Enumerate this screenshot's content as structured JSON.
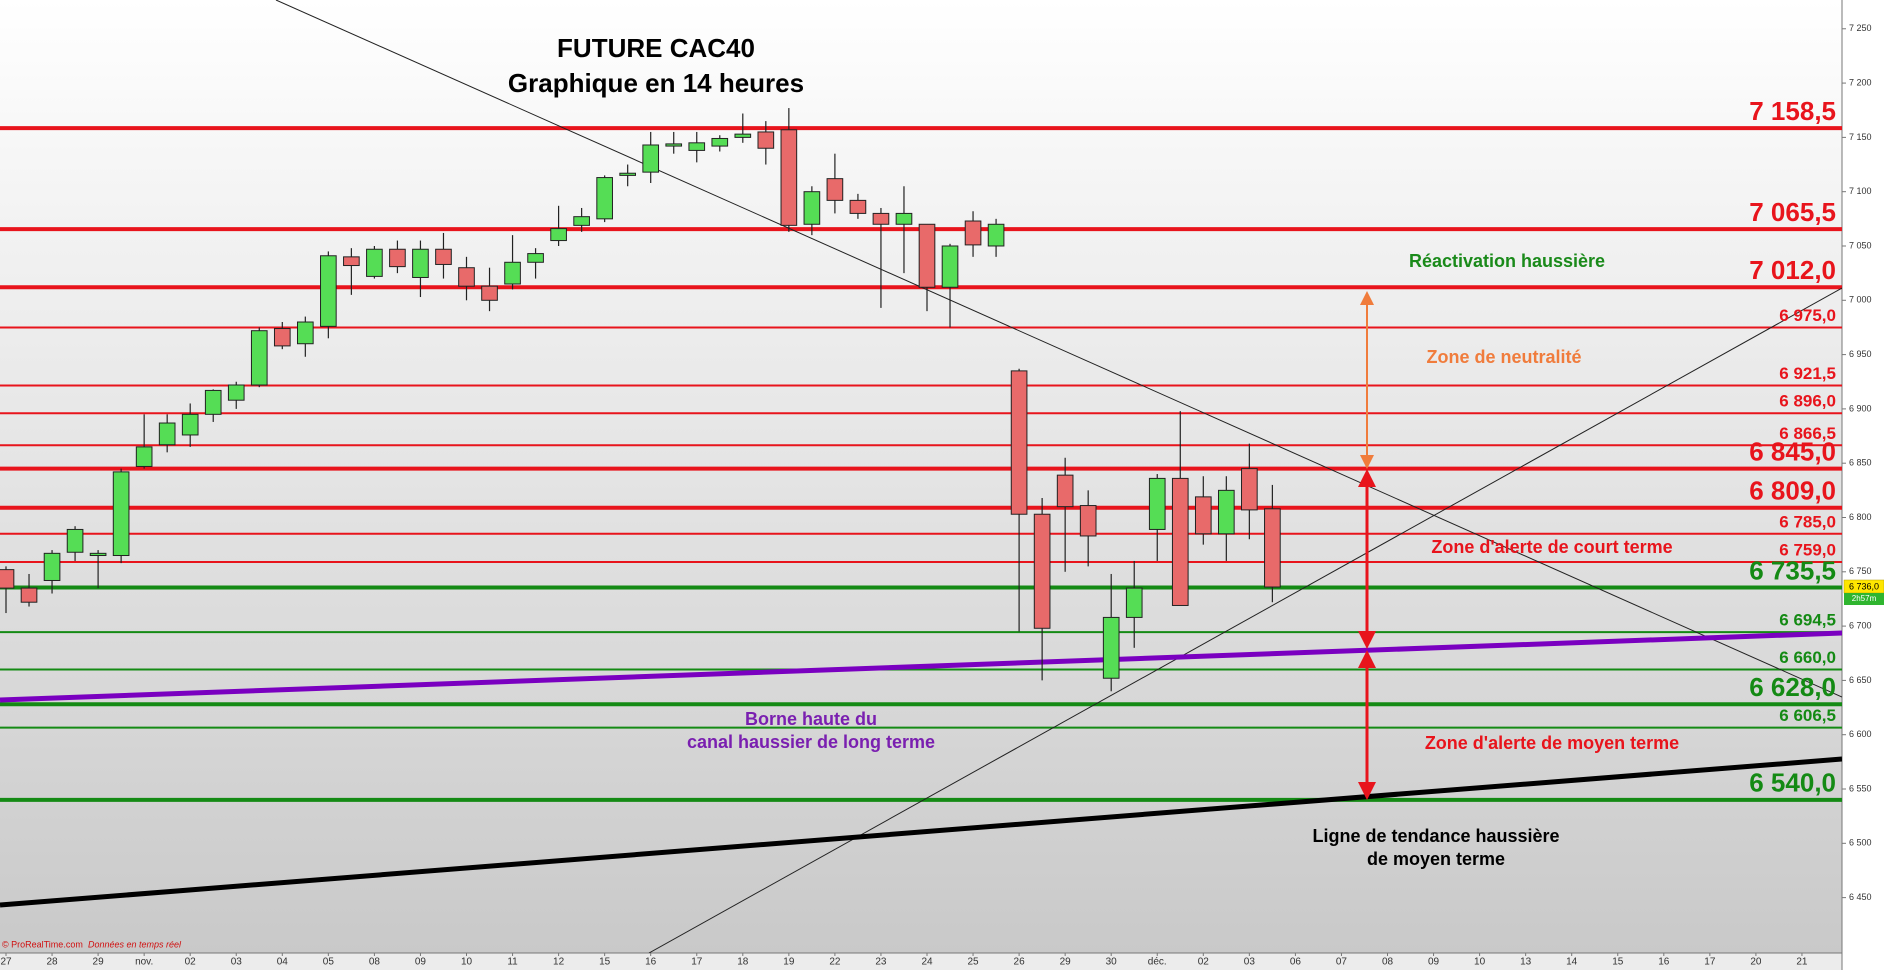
{
  "chart_data": {
    "type": "candlestick",
    "title": "FUTURE CAC40",
    "subtitle": "Graphique en 14 heures",
    "up_color": "#55dd55",
    "down_color": "#e86a6a",
    "categories": [
      "27",
      null,
      "28",
      null,
      "29",
      null,
      "nov.",
      null,
      "02",
      null,
      "03",
      null,
      "04",
      null,
      "05",
      null,
      "08",
      null,
      "09",
      null,
      "10",
      null,
      "11",
      null,
      "12",
      null,
      "15",
      null,
      "16",
      null,
      "17",
      null,
      "18",
      null,
      "19",
      null,
      "22",
      null,
      "23",
      null,
      "24",
      null,
      "25",
      null,
      "26",
      null,
      "29",
      null,
      "30",
      null,
      "déc.",
      null,
      "02",
      null,
      "03",
      null,
      "06",
      null,
      "07",
      null,
      "08",
      null,
      "09",
      null,
      "10",
      null,
      "13",
      null,
      "14",
      null,
      "15",
      null,
      "16",
      null,
      "17",
      null,
      "20",
      null,
      "21",
      null
    ],
    "open": [
      6752,
      6735,
      6742,
      6768,
      6765,
      6765,
      6847,
      6867,
      6876,
      6895,
      6908,
      6922,
      6974,
      6960,
      6976,
      7040,
      7022,
      7047,
      7021,
      7047,
      7030,
      7013,
      7015,
      7035,
      7055,
      7069,
      7075,
      7115,
      7118,
      7142,
      7138,
      7142,
      7150,
      7155,
      7157,
      7070,
      7112,
      7092,
      7080,
      7070,
      7070,
      7012,
      7073,
      7050,
      6935,
      6803,
      6839,
      6811,
      6652,
      6708,
      6789,
      6836,
      6819,
      6785,
      6845,
      6808,
      null,
      null,
      null,
      null,
      null,
      null,
      null,
      null,
      null,
      null,
      null,
      null,
      null,
      null,
      null,
      null,
      null,
      null,
      null,
      null,
      null,
      null,
      null,
      null
    ],
    "high": [
      6755,
      6748,
      6770,
      6792,
      6770,
      6845,
      6895,
      6895,
      6905,
      6918,
      6925,
      6975,
      6980,
      6985,
      7045,
      7048,
      7050,
      7055,
      7055,
      7062,
      7040,
      7030,
      7060,
      7048,
      7087,
      7085,
      7115,
      7125,
      7155,
      7155,
      7155,
      7152,
      7172,
      7165,
      7177,
      7105,
      7135,
      7098,
      7085,
      7105,
      7070,
      7052,
      7082,
      7075,
      6937,
      6818,
      6855,
      6825,
      6748,
      6760,
      6840,
      6898,
      6838,
      6838,
      6868,
      6830,
      null,
      null,
      null,
      null,
      null,
      null,
      null,
      null,
      null,
      null,
      null,
      null,
      null,
      null,
      null,
      null,
      null,
      null,
      null,
      null,
      null,
      null,
      null,
      null
    ],
    "low": [
      6712,
      6718,
      6730,
      6760,
      6735,
      6758,
      6845,
      6860,
      6865,
      6888,
      6900,
      6920,
      6955,
      6948,
      6965,
      7005,
      7020,
      7025,
      7003,
      7020,
      7000,
      6990,
      7010,
      7020,
      7050,
      7063,
      7072,
      7105,
      7108,
      7135,
      7127,
      7137,
      7145,
      7125,
      7063,
      7060,
      7080,
      7075,
      6993,
      7025,
      6990,
      6975,
      7040,
      7040,
      6695,
      6650,
      6750,
      6755,
      6640,
      6680,
      6760,
      6719,
      6775,
      6760,
      6780,
      6722,
      null,
      null,
      null,
      null,
      null,
      null,
      null,
      null,
      null,
      null,
      null,
      null,
      null,
      null,
      null,
      null,
      null,
      null,
      null,
      null,
      null,
      null,
      null,
      null
    ],
    "close": [
      6735,
      6722,
      6767,
      6789,
      6767,
      6842,
      6865,
      6887,
      6895,
      6917,
      6922,
      6972,
      6958,
      6980,
      7041,
      7032,
      7047,
      7031,
      7047,
      7033,
      7013,
      7000,
      7035,
      7043,
      7066,
      7077,
      7113,
      7117,
      7143,
      7144,
      7145,
      7149,
      7153,
      7140,
      7069,
      7100,
      7092,
      7080,
      7070,
      7080,
      7012,
      7050,
      7051,
      7070,
      6803,
      6698,
      6810,
      6783,
      6708,
      6735,
      6836,
      6719,
      6785,
      6825,
      6807,
      6736,
      null,
      null,
      null,
      null,
      null,
      null,
      null,
      null,
      null,
      null,
      null,
      null,
      null,
      null,
      null,
      null,
      null,
      null,
      null,
      null,
      null,
      null,
      null,
      null
    ],
    "ylim": [
      6399,
      7276.5
    ],
    "yticks": [
      {
        "value": 6450,
        "label": "6 450"
      },
      {
        "value": 6500,
        "label": "6 500"
      },
      {
        "value": 6550,
        "label": "6 550"
      },
      {
        "value": 6600,
        "label": "6 600"
      },
      {
        "value": 6650,
        "label": "6 650"
      },
      {
        "value": 6700,
        "label": "6 700"
      },
      {
        "value": 6750,
        "label": "6 750"
      },
      {
        "value": 6800,
        "label": "6 800"
      },
      {
        "value": 6850,
        "label": "6 850"
      },
      {
        "value": 6900,
        "label": "6 900"
      },
      {
        "value": 6950,
        "label": "6 950"
      },
      {
        "value": 7000,
        "label": "7 000"
      },
      {
        "value": 7050,
        "label": "7 050"
      },
      {
        "value": 7100,
        "label": "7 100"
      },
      {
        "value": 7150,
        "label": "7 150"
      },
      {
        "value": 7200,
        "label": "7 200"
      },
      {
        "value": 7250,
        "label": "7 250"
      }
    ],
    "levels": [
      {
        "value": 7158.5,
        "label": "7 158,5",
        "color": "#e8141c",
        "style": "major"
      },
      {
        "value": 7065.5,
        "label": "7 065,5",
        "color": "#e8141c",
        "style": "major"
      },
      {
        "value": 7012.0,
        "label": "7 012,0",
        "color": "#e8141c",
        "style": "major"
      },
      {
        "value": 6975.0,
        "label": "6 975,0",
        "color": "#e8141c",
        "style": "minor"
      },
      {
        "value": 6921.5,
        "label": "6 921,5",
        "color": "#e8141c",
        "style": "minor"
      },
      {
        "value": 6896.0,
        "label": "6 896,0",
        "color": "#e8141c",
        "style": "minor"
      },
      {
        "value": 6866.5,
        "label": "6 866,5",
        "color": "#e8141c",
        "style": "minor"
      },
      {
        "value": 6845.0,
        "label": "6 845,0",
        "color": "#e8141c",
        "style": "major"
      },
      {
        "value": 6809.0,
        "label": "6 809,0",
        "color": "#e8141c",
        "style": "major"
      },
      {
        "value": 6785.0,
        "label": "6 785,0",
        "color": "#e8141c",
        "style": "minor"
      },
      {
        "value": 6759.0,
        "label": "6 759,0",
        "color": "#e8141c",
        "style": "minor"
      },
      {
        "value": 6735.5,
        "label": "6 735,5",
        "color": "#148a14",
        "style": "major"
      },
      {
        "value": 6694.5,
        "label": "6 694,5",
        "color": "#148a14",
        "style": "minor"
      },
      {
        "value": 6660.0,
        "label": "6 660,0",
        "color": "#148a14",
        "style": "minor"
      },
      {
        "value": 6628.0,
        "label": "6 628,0",
        "color": "#148a14",
        "style": "major"
      },
      {
        "value": 6606.5,
        "label": "6 606,5",
        "color": "#148a14",
        "style": "minor"
      },
      {
        "value": 6540.0,
        "label": "6 540,0",
        "color": "#148a14",
        "style": "major"
      }
    ],
    "annotations": [
      {
        "lines": [
          "Réactivation haussière"
        ],
        "color": "#1a8a1a"
      },
      {
        "lines": [
          "Zone de neutralité"
        ],
        "color": "#f07c3c"
      },
      {
        "lines": [
          "Zone d'alerte de court terme"
        ],
        "color": "#e8141c"
      },
      {
        "lines": [
          "Borne haute du",
          "canal haussier de long terme"
        ],
        "color": "#7a1fb0"
      },
      {
        "lines": [
          "Zone d'alerte de moyen terme"
        ],
        "color": "#e8141c"
      },
      {
        "lines": [
          "Ligne de tendance haussière",
          "de moyen terme"
        ],
        "color": "#000000"
      }
    ],
    "last_price": {
      "value": 6736.0,
      "label": "6 736,0"
    },
    "timer": "2h57m",
    "source": "© ProRealTime.com",
    "source_note": "Données en temps réel"
  }
}
